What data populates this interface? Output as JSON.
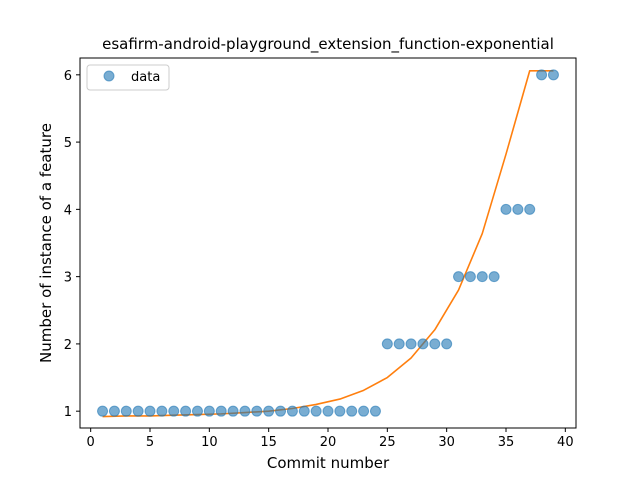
{
  "chart_data": {
    "type": "scatter",
    "title": "esafirm-android-playground_extension_function-exponential",
    "xlabel": "Commit number",
    "ylabel": "Number of instance of a feature",
    "xlim": [
      -0.9,
      40.9
    ],
    "ylim": [
      0.75,
      6.25
    ],
    "xticks": [
      0,
      5,
      10,
      15,
      20,
      25,
      30,
      35,
      40
    ],
    "yticks": [
      1,
      2,
      3,
      4,
      5,
      6
    ],
    "grid": false,
    "legend": {
      "placement": "upper-left",
      "entries": [
        "data"
      ]
    },
    "series": [
      {
        "name": "data",
        "kind": "scatter",
        "color": "#1f77b4",
        "x": [
          1,
          2,
          3,
          4,
          5,
          6,
          7,
          8,
          9,
          10,
          11,
          12,
          13,
          14,
          15,
          16,
          17,
          18,
          19,
          20,
          21,
          22,
          23,
          24,
          25,
          26,
          27,
          28,
          29,
          30,
          31,
          32,
          33,
          34,
          35,
          36,
          37,
          38,
          39
        ],
        "y": [
          1,
          1,
          1,
          1,
          1,
          1,
          1,
          1,
          1,
          1,
          1,
          1,
          1,
          1,
          1,
          1,
          1,
          1,
          1,
          1,
          1,
          1,
          1,
          1,
          2,
          2,
          2,
          2,
          2,
          2,
          3,
          3,
          3,
          3,
          4,
          4,
          4,
          6,
          6
        ]
      },
      {
        "kind": "line",
        "color": "#ff7f0e",
        "x": [
          1,
          3,
          5,
          7,
          9,
          11,
          13,
          15,
          17,
          19,
          21,
          23,
          25,
          27,
          29,
          31,
          33,
          35,
          37,
          39
        ],
        "y": [
          0.92,
          0.93,
          0.93,
          0.94,
          0.95,
          0.96,
          0.98,
          1.0,
          1.04,
          1.1,
          1.18,
          1.31,
          1.5,
          1.79,
          2.21,
          2.8,
          3.64,
          4.82,
          6.06,
          6.06
        ]
      }
    ]
  }
}
